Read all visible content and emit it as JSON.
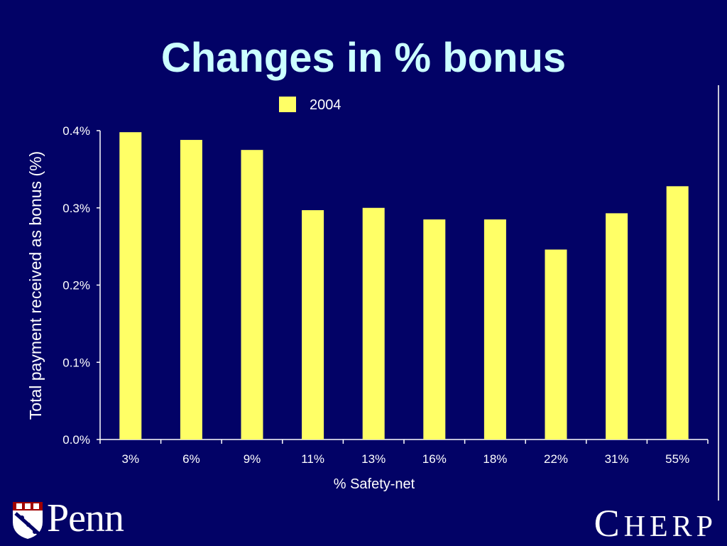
{
  "slide": {
    "title": "Changes in % bonus",
    "footer_left": "Penn",
    "footer_right_first": "C",
    "footer_right_rest": "HERP"
  },
  "colors": {
    "background": "#020266",
    "title": "#ccffff",
    "bar": "#ffff66",
    "axis": "#ffffff"
  },
  "chart_data": {
    "type": "bar",
    "title": "",
    "xlabel": "% Safety-net",
    "ylabel": "Total payment received as bonus (%)",
    "categories": [
      "3%",
      "6%",
      "9%",
      "11%",
      "13%",
      "16%",
      "18%",
      "22%",
      "31%",
      "55%"
    ],
    "series": [
      {
        "name": "2004",
        "values": [
          0.398,
          0.388,
          0.375,
          0.297,
          0.3,
          0.285,
          0.285,
          0.246,
          0.293,
          0.328
        ]
      }
    ],
    "ylim": [
      0,
      0.4
    ],
    "yticks": [
      0,
      0.1,
      0.2,
      0.3,
      0.4
    ],
    "ytick_labels": [
      "0.0%",
      "0.1%",
      "0.2%",
      "0.3%",
      "0.4%"
    ],
    "grid": false,
    "legend_position": "top-center"
  }
}
